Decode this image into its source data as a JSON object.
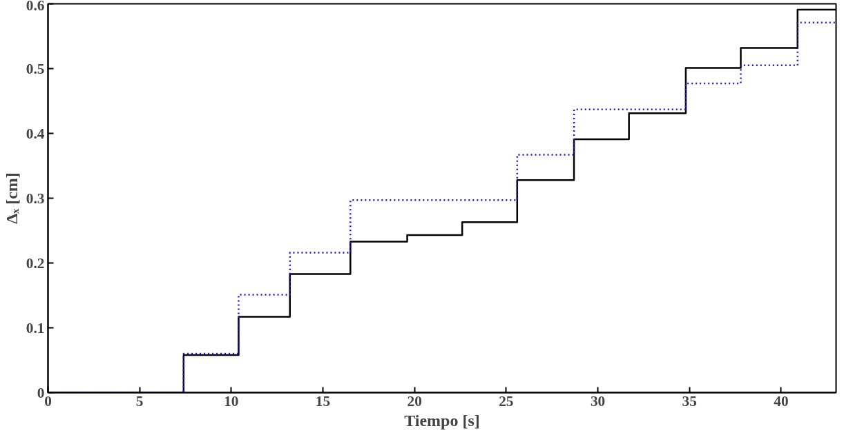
{
  "chart_data": {
    "type": "step",
    "xlabel": "Tiempo [s]",
    "ylabel": "Δₓ [cm]",
    "xlim": [
      0,
      43
    ],
    "ylim": [
      0,
      0.6
    ],
    "xticks": [
      0,
      5,
      10,
      15,
      20,
      25,
      30,
      35,
      40
    ],
    "yticks": [
      0,
      0.1,
      0.2,
      0.3,
      0.4,
      0.5,
      0.6
    ],
    "series": [
      {
        "color": "#000000",
        "line_style": "solid",
        "x": [
          0,
          7.4,
          10.4,
          13.2,
          16.5,
          19.6,
          22.6,
          25.6,
          28.7,
          31.7,
          34.8,
          37.8,
          40.9,
          43
        ],
        "values": [
          0,
          0.058,
          0.117,
          0.183,
          0.233,
          0.243,
          0.263,
          0.328,
          0.391,
          0.431,
          0.501,
          0.532,
          0.591,
          0.591
        ]
      },
      {
        "color": "#1a1acc",
        "line_style": "dotted",
        "x": [
          0,
          7.4,
          10.4,
          13.2,
          16.5,
          25.6,
          28.7,
          34.8,
          37.8,
          40.9,
          43
        ],
        "values": [
          0,
          0.06,
          0.151,
          0.216,
          0.297,
          0.367,
          0.437,
          0.477,
          0.505,
          0.571,
          0.571
        ]
      }
    ]
  }
}
